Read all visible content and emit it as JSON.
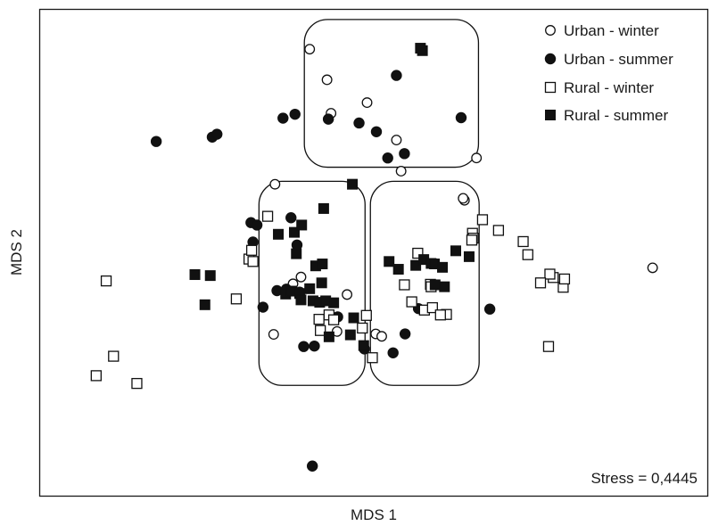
{
  "chart_data": {
    "type": "scatter",
    "title": "",
    "xlabel": "MDS 1",
    "ylabel": "MDS 2",
    "annotation": "Stress = 0,4445",
    "legend_position": "top-right",
    "xlim": [
      0,
      100
    ],
    "ylim": [
      0,
      100
    ],
    "grid": false,
    "ticks": false,
    "colors": {
      "fill": "#111111",
      "stroke": "#111111",
      "background": "#ffffff"
    },
    "groups": [
      {
        "label": "upper cluster",
        "x": [
          39.6,
          65.7
        ],
        "y": [
          67.6,
          98.0
        ]
      },
      {
        "label": "lower-left cluster",
        "x": [
          32.8,
          48.7
        ],
        "y": [
          22.7,
          64.7
        ]
      },
      {
        "label": "lower-right cluster",
        "x": [
          49.5,
          65.8
        ],
        "y": [
          22.7,
          64.7
        ]
      }
    ],
    "series": [
      {
        "name": "Urban - winter",
        "marker": "circle-open",
        "x": [
          40.4,
          43.0,
          43.6,
          49.0,
          53.4,
          54.1,
          39.1,
          37.9,
          35.2,
          46.0,
          44.5,
          50.3,
          51.2,
          63.6,
          63.4,
          65.4,
          91.8,
          35.0
        ],
        "y": [
          91.9,
          85.6,
          78.7,
          80.9,
          73.2,
          66.8,
          45.0,
          43.6,
          64.1,
          41.4,
          33.8,
          33.3,
          32.8,
          60.8,
          61.2,
          69.5,
          46.9,
          33.2
        ]
      },
      {
        "name": "Urban - summer",
        "marker": "circle-filled",
        "x": [
          17.4,
          25.8,
          26.5,
          36.4,
          38.2,
          43.2,
          47.8,
          50.4,
          52.1,
          53.4,
          54.6,
          63.1,
          31.6,
          31.9,
          32.5,
          33.4,
          35.5,
          36.9,
          38.9,
          39.5,
          41.1,
          37.6,
          38.5,
          44.6,
          48.6,
          54.7,
          56.7,
          67.4,
          52.9,
          40.8
        ],
        "y": [
          72.9,
          73.8,
          74.4,
          77.7,
          78.5,
          77.5,
          76.7,
          74.9,
          69.5,
          86.5,
          70.4,
          77.8,
          56.2,
          52.2,
          55.7,
          38.8,
          42.2,
          42.5,
          41.9,
          30.7,
          30.8,
          57.2,
          51.6,
          36.8,
          30.2,
          33.3,
          38.5,
          38.4,
          29.4,
          6.1
        ]
      },
      {
        "name": "Rural - winter",
        "marker": "square-open",
        "x": [
          9.9,
          11.0,
          8.4,
          14.5,
          31.3,
          31.7,
          31.9,
          29.4,
          34.1,
          43.3,
          41.8,
          44.0,
          42.0,
          48.9,
          48.3,
          60.9,
          49.8,
          64.8,
          66.3,
          64.9,
          68.7,
          72.4,
          73.1,
          76.9,
          76.4,
          78.4,
          78.6,
          76.2,
          75.0,
          58.5,
          55.7,
          54.6,
          58.6,
          57.6,
          58.8,
          60.0,
          56.6,
          64.7
        ],
        "y": [
          44.2,
          28.7,
          24.7,
          23.1,
          48.7,
          50.5,
          48.2,
          40.5,
          57.5,
          37.2,
          36.3,
          36.2,
          34.0,
          37.1,
          34.5,
          37.3,
          28.4,
          54.0,
          56.8,
          53.0,
          54.6,
          52.3,
          49.6,
          44.9,
          45.6,
          42.9,
          44.6,
          30.7,
          43.8,
          43.5,
          39.9,
          43.4,
          43.0,
          38.2,
          38.7,
          37.2,
          49.9,
          52.6
        ]
      },
      {
        "name": "Rural - summer",
        "marker": "square-filled",
        "x": [
          57.3,
          57.0,
          23.2,
          25.5,
          24.7,
          42.2,
          42.5,
          46.8,
          35.7,
          38.1,
          39.2,
          38.4,
          41.3,
          40.4,
          42.3,
          36.8,
          37.7,
          38.9,
          39.1,
          40.9,
          41.9,
          42.8,
          44.0,
          43.3,
          48.5,
          46.5,
          47.0,
          52.3,
          53.7,
          56.3,
          57.5,
          58.6,
          59.1,
          60.3,
          59.2,
          62.3,
          64.3,
          60.6
        ],
        "y": [
          91.6,
          92.1,
          45.5,
          45.3,
          39.3,
          43.8,
          59.1,
          64.1,
          53.8,
          54.2,
          55.7,
          49.8,
          47.3,
          42.6,
          47.7,
          41.5,
          42.1,
          41.6,
          40.3,
          40.1,
          39.8,
          40.1,
          39.7,
          32.7,
          30.9,
          33.1,
          36.6,
          48.2,
          46.6,
          47.4,
          48.6,
          47.8,
          47.7,
          47.0,
          43.4,
          50.4,
          49.2,
          43.0
        ]
      }
    ]
  }
}
